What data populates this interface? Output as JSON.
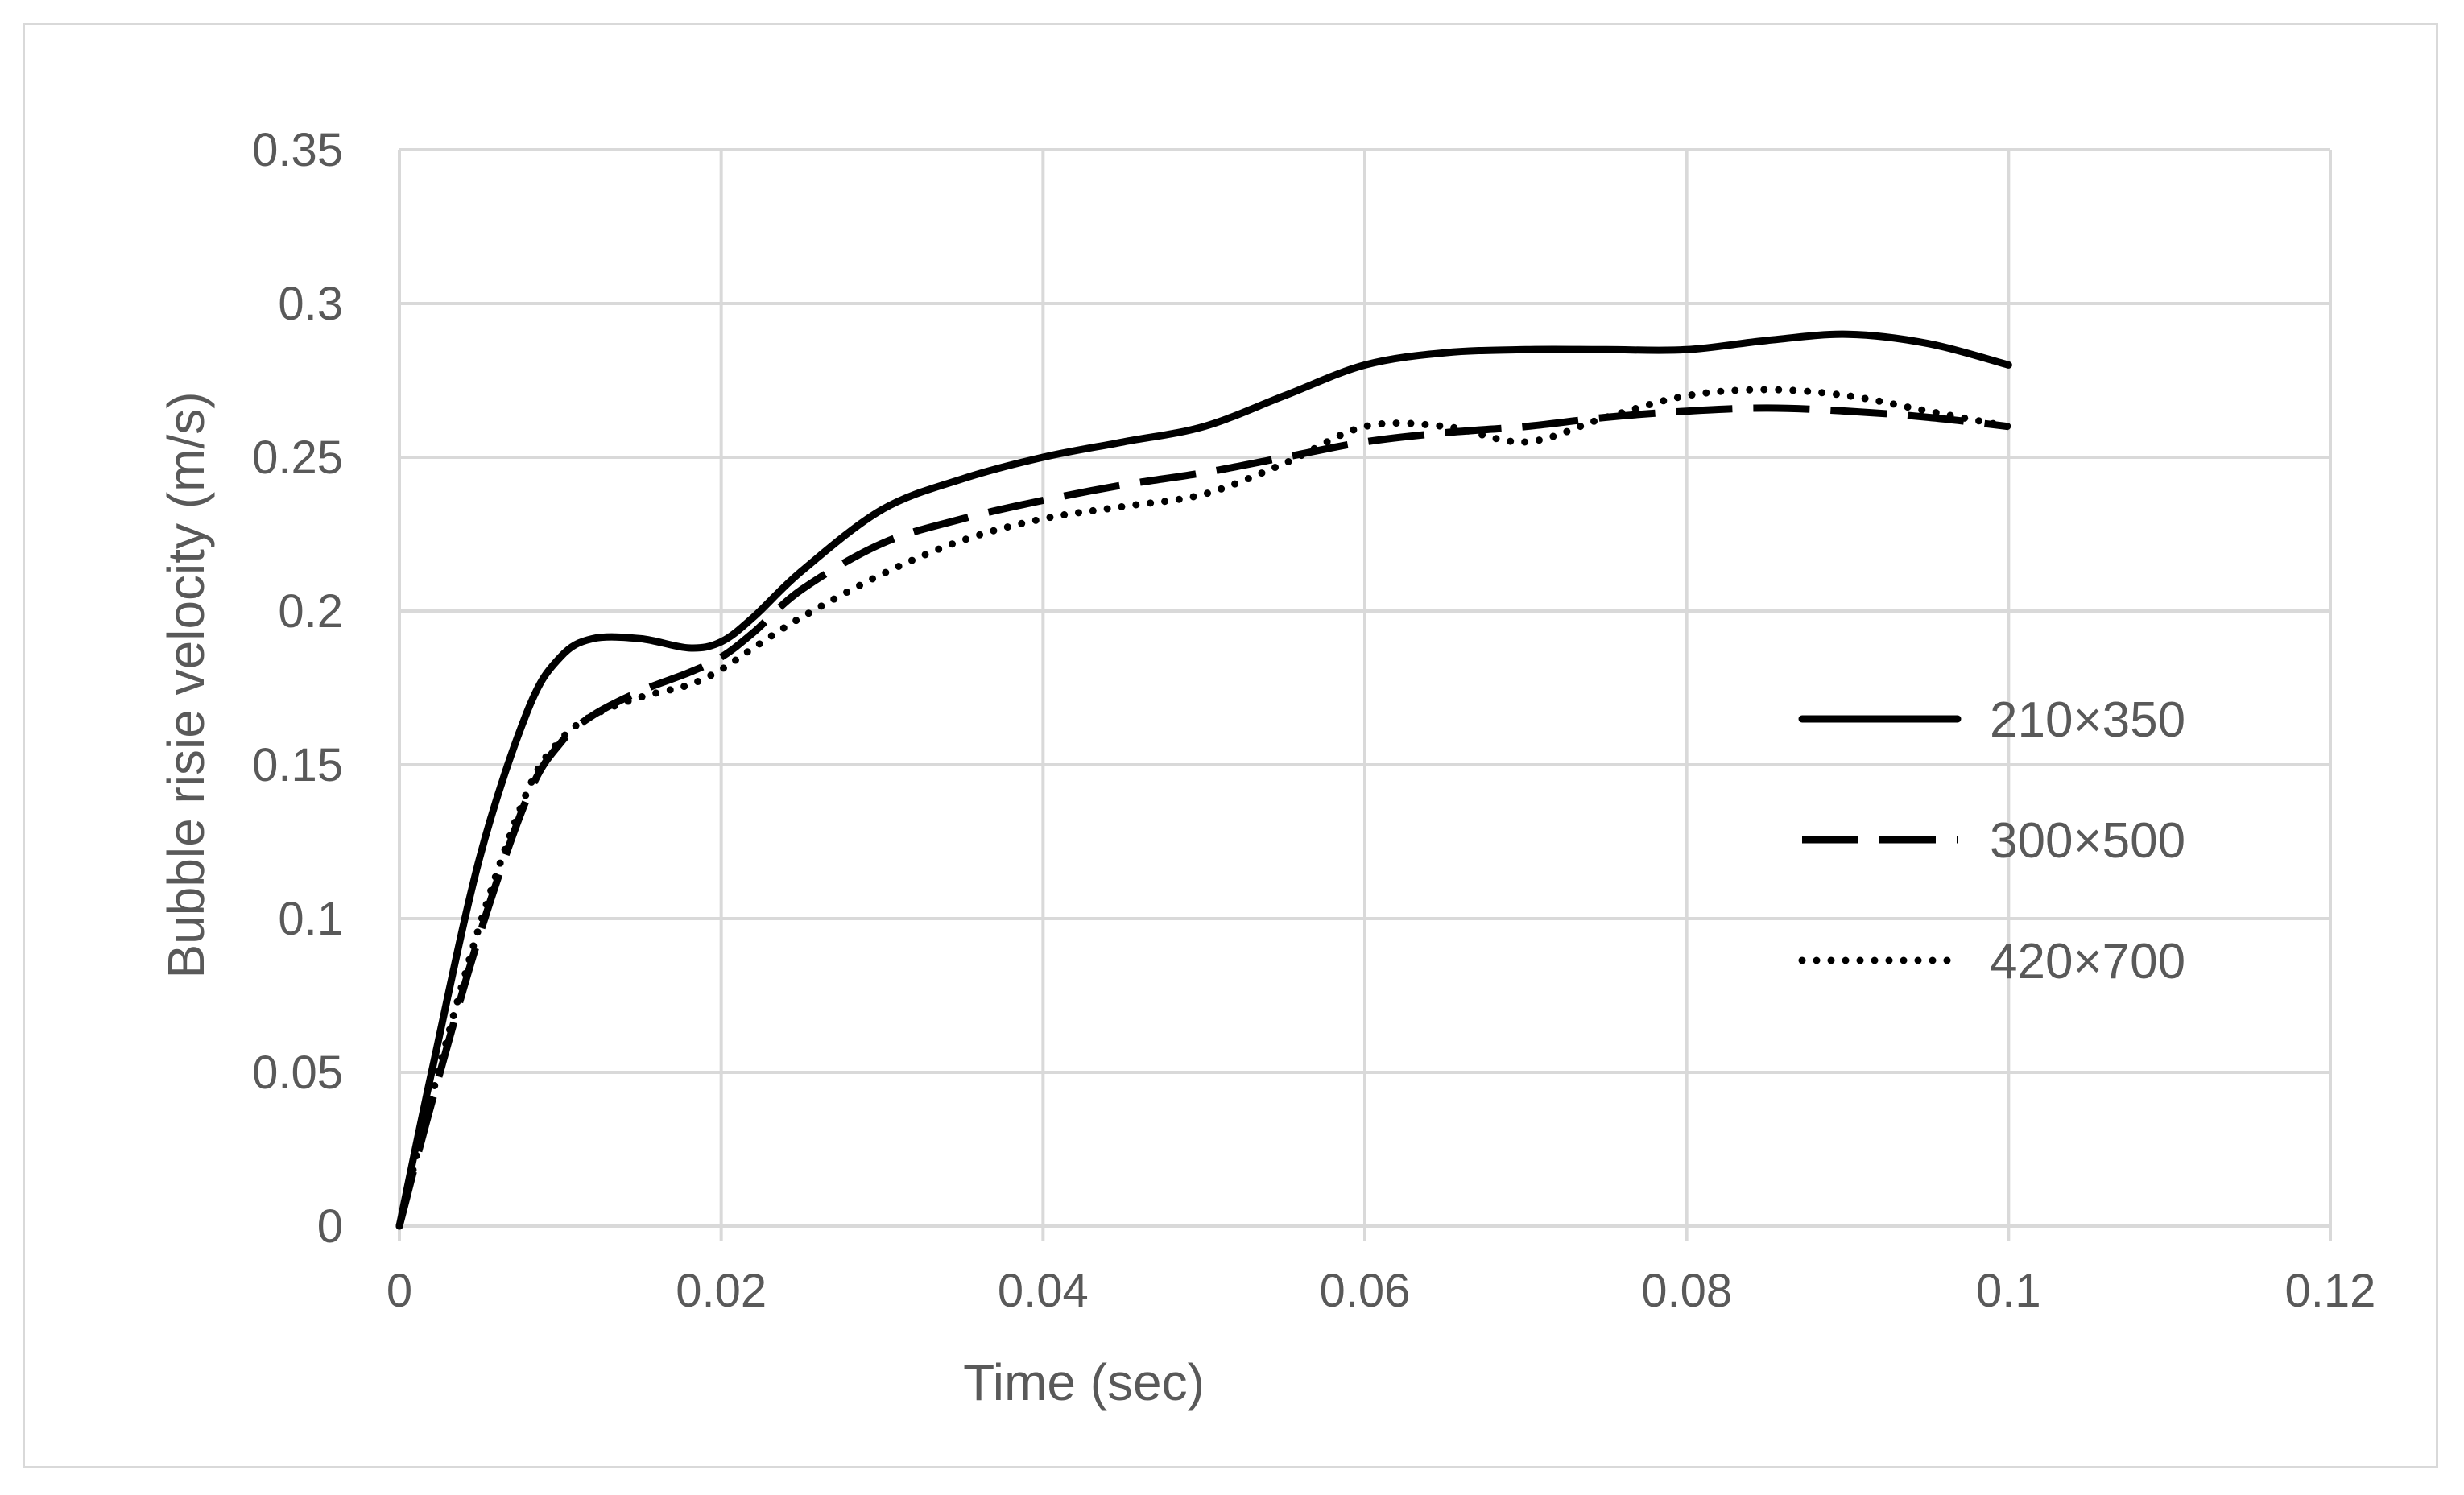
{
  "chart_data": {
    "type": "line",
    "title": "",
    "xlabel": "Time (sec)",
    "ylabel": "Bubble risie velocity (m/s)",
    "xlim": [
      0,
      0.12
    ],
    "ylim": [
      0,
      0.35
    ],
    "xticks": [
      0,
      0.02,
      0.04,
      0.06,
      0.08,
      0.1,
      0.12
    ],
    "yticks": [
      0,
      0.05,
      0.1,
      0.15,
      0.2,
      0.25,
      0.3,
      0.35
    ],
    "xtick_labels": [
      "0",
      "0.02",
      "0.04",
      "0.06",
      "0.08",
      "0.1",
      "0.12"
    ],
    "ytick_labels": [
      "0",
      "0.05",
      "0.1",
      "0.15",
      "0.2",
      "0.25",
      "0.3",
      "0.35"
    ],
    "grid": true,
    "legend_position": "right",
    "series": [
      {
        "name": "210×350",
        "style": "solid",
        "color": "#000000",
        "x": [
          0,
          0.002,
          0.005,
          0.008,
          0.01,
          0.012,
          0.015,
          0.018,
          0.02,
          0.022,
          0.025,
          0.03,
          0.035,
          0.04,
          0.045,
          0.05,
          0.055,
          0.06,
          0.065,
          0.07,
          0.075,
          0.08,
          0.085,
          0.09,
          0.095,
          0.1
        ],
        "y": [
          0,
          0.05,
          0.12,
          0.168,
          0.185,
          0.191,
          0.191,
          0.188,
          0.19,
          0.198,
          0.213,
          0.233,
          0.243,
          0.25,
          0.255,
          0.26,
          0.27,
          0.28,
          0.284,
          0.285,
          0.285,
          0.285,
          0.288,
          0.29,
          0.287,
          0.28
        ]
      },
      {
        "name": "300×500",
        "style": "dashed",
        "color": "#000000",
        "x": [
          0,
          0.002,
          0.005,
          0.008,
          0.01,
          0.012,
          0.015,
          0.018,
          0.02,
          0.022,
          0.025,
          0.03,
          0.035,
          0.04,
          0.045,
          0.05,
          0.055,
          0.06,
          0.065,
          0.07,
          0.075,
          0.08,
          0.085,
          0.09,
          0.095,
          0.1
        ],
        "y": [
          0,
          0.04,
          0.095,
          0.14,
          0.157,
          0.166,
          0.174,
          0.18,
          0.185,
          0.193,
          0.207,
          0.222,
          0.23,
          0.236,
          0.241,
          0.245,
          0.25,
          0.255,
          0.258,
          0.26,
          0.263,
          0.265,
          0.266,
          0.265,
          0.263,
          0.26
        ]
      },
      {
        "name": "420×700",
        "style": "dotted",
        "color": "#000000",
        "x": [
          0,
          0.002,
          0.005,
          0.008,
          0.01,
          0.012,
          0.015,
          0.018,
          0.02,
          0.022,
          0.025,
          0.03,
          0.035,
          0.04,
          0.045,
          0.05,
          0.055,
          0.06,
          0.065,
          0.07,
          0.075,
          0.08,
          0.085,
          0.09,
          0.095,
          0.1
        ],
        "y": [
          0,
          0.042,
          0.098,
          0.142,
          0.158,
          0.166,
          0.172,
          0.176,
          0.181,
          0.188,
          0.198,
          0.212,
          0.223,
          0.23,
          0.234,
          0.238,
          0.248,
          0.26,
          0.26,
          0.255,
          0.263,
          0.27,
          0.272,
          0.27,
          0.265,
          0.26
        ]
      }
    ]
  }
}
